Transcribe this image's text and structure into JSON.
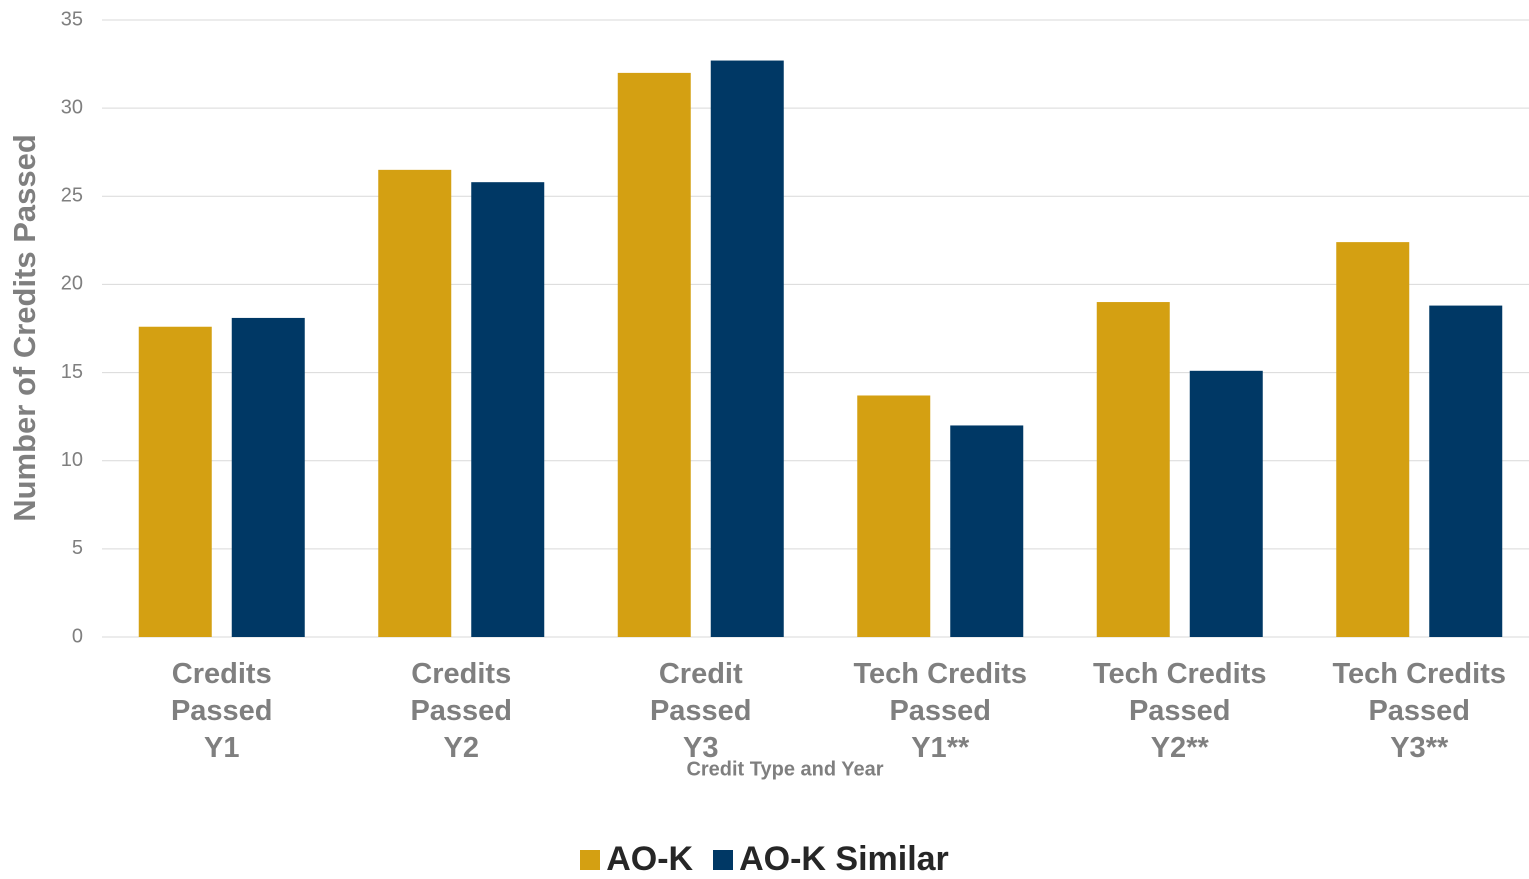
{
  "chart_data": {
    "type": "bar",
    "y_label": "Number of Credits Passed",
    "x_label": "Credit Type and Year",
    "categories": [
      "Credits\nPassed\nY1",
      "Credits\nPassed\nY2",
      "Credit\nPassed\nY3",
      "Tech Credits\nPassed\nY1**",
      "Tech Credits\nPassed\nY2**",
      "Tech Credits\nPassed\nY3**"
    ],
    "series": [
      {
        "name": "AO-K",
        "color": "#d4a012",
        "values": [
          17.6,
          26.5,
          32.0,
          13.7,
          19.0,
          22.4
        ]
      },
      {
        "name": "AO-K Similar",
        "color": "#003865",
        "values": [
          18.1,
          25.8,
          32.7,
          12.0,
          15.1,
          18.8
        ]
      }
    ],
    "ylim": [
      0,
      35
    ],
    "yticks": [
      0,
      5,
      10,
      15,
      20,
      25,
      30,
      35
    ],
    "grid": true,
    "legend": "bottom"
  }
}
